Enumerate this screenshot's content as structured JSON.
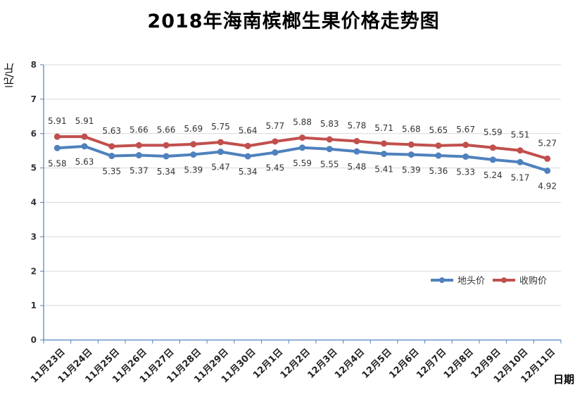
{
  "chart_data": {
    "type": "line",
    "title": "2018年海南槟榔生果价格走势图",
    "ylabel": "元/斤",
    "xlabel": "日期",
    "ylim": [
      0,
      8
    ],
    "yticks": [
      0,
      1,
      2,
      3,
      4,
      5,
      6,
      7,
      8
    ],
    "grid": true,
    "legend_position": "right",
    "categories": [
      "11月23日",
      "11月24日",
      "11月25日",
      "11月26日",
      "11月27日",
      "11月28日",
      "11月29日",
      "11月30日",
      "12月1日",
      "12月2日",
      "12月3日",
      "12月4日",
      "12月5日",
      "12月6日",
      "12月7日",
      "12月8日",
      "12月9日",
      "12月10日",
      "12月11日"
    ],
    "series": [
      {
        "name": "地头价",
        "color": "#4F81BD",
        "label_position": "below",
        "values": [
          5.58,
          5.63,
          5.35,
          5.37,
          5.34,
          5.39,
          5.47,
          5.34,
          5.45,
          5.59,
          5.55,
          5.48,
          5.41,
          5.39,
          5.36,
          5.33,
          5.24,
          5.17,
          4.92
        ]
      },
      {
        "name": "收购价",
        "color": "#C0504D",
        "label_position": "above",
        "values": [
          5.91,
          5.91,
          5.63,
          5.66,
          5.66,
          5.69,
          5.75,
          5.64,
          5.77,
          5.88,
          5.83,
          5.78,
          5.71,
          5.68,
          5.65,
          5.67,
          5.59,
          5.51,
          5.27
        ]
      }
    ]
  }
}
